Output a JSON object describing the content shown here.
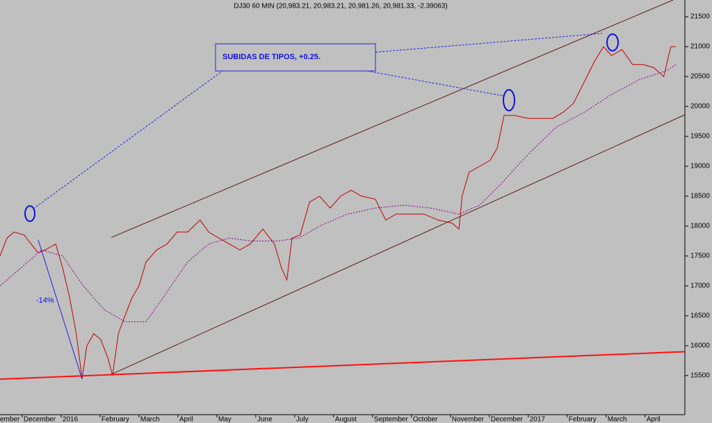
{
  "chart_data": {
    "type": "line",
    "title": "DJ30 60 MIN (20,983.21, 20,983.21, 20,981.26, 20,981.33, -2.39063)",
    "annotations": [
      "SUBIDAS DE TIPOS, +0.25.",
      "-14%"
    ],
    "xlim": [
      0.43,
      18.72
    ],
    "xticks": [
      {
        "value": 0,
        "label": "ember"
      },
      {
        "value": 1,
        "label": "December"
      },
      {
        "value": 2,
        "label": "2016"
      },
      {
        "value": 3,
        "label": "February"
      },
      {
        "value": 4,
        "label": "March"
      },
      {
        "value": 5,
        "label": "April"
      },
      {
        "value": 6,
        "label": "May"
      },
      {
        "value": 7,
        "label": "June"
      },
      {
        "value": 8,
        "label": "July"
      },
      {
        "value": 9,
        "label": "August"
      },
      {
        "value": 10,
        "label": "September"
      },
      {
        "value": 11,
        "label": "October"
      },
      {
        "value": 12,
        "label": "November"
      },
      {
        "value": 13,
        "label": "December"
      },
      {
        "value": 14,
        "label": "2017"
      },
      {
        "value": 15,
        "label": "February"
      },
      {
        "value": 16,
        "label": "March"
      },
      {
        "value": 17,
        "label": "April"
      }
    ],
    "ylim": [
      14870,
      21780
    ],
    "yticks": [
      15500,
      16000,
      16500,
      17000,
      17500,
      18000,
      18500,
      19000,
      19500,
      20000,
      20500,
      21000,
      21500
    ],
    "series": [
      {
        "color": "#c00000",
        "style": "solid",
        "x": [
          0.43,
          0.61,
          0.79,
          1.05,
          1.23,
          1.41,
          1.59,
          1.86,
          2.04,
          2.22,
          2.39,
          2.54,
          2.66,
          2.84,
          3.02,
          3.2,
          3.32,
          3.47,
          3.64,
          3.82,
          4.0,
          4.18,
          4.45,
          4.72,
          4.98,
          5.25,
          5.57,
          5.79,
          6.05,
          6.32,
          6.59,
          6.86,
          7.18,
          7.48,
          7.66,
          7.8,
          7.93,
          8.14,
          8.38,
          8.64,
          8.91,
          9.18,
          9.45,
          9.72,
          10.07,
          10.34,
          10.61,
          10.96,
          11.32,
          11.68,
          12.04,
          12.22,
          12.3,
          12.48,
          12.75,
          13.02,
          13.2,
          13.38,
          13.64,
          14.0,
          14.36,
          14.63,
          14.89,
          15.16,
          15.43,
          15.7,
          15.93,
          16.14,
          16.41,
          16.68,
          16.95,
          17.22,
          17.48,
          17.66,
          17.79
        ],
        "values": [
          17500,
          17800,
          17900,
          17850,
          17700,
          17550,
          17600,
          17700,
          17300,
          16800,
          16200,
          15450,
          16000,
          16200,
          16100,
          15800,
          15500,
          16200,
          16500,
          16800,
          17000,
          17400,
          17600,
          17700,
          17900,
          17900,
          18100,
          17900,
          17800,
          17700,
          17600,
          17700,
          17950,
          17700,
          17300,
          17100,
          17800,
          17850,
          18400,
          18500,
          18300,
          18500,
          18600,
          18500,
          18450,
          18100,
          18200,
          18200,
          18200,
          18100,
          18050,
          17950,
          18500,
          18900,
          19000,
          19100,
          19300,
          19850,
          19850,
          19800,
          19800,
          19800,
          19900,
          20050,
          20400,
          20750,
          21000,
          20850,
          20950,
          20700,
          20700,
          20650,
          20500,
          21000,
          21000
        ]
      },
      {
        "color": "#800080",
        "style": "dotted",
        "x": [
          0.43,
          0.97,
          1.5,
          2.04,
          2.57,
          3.11,
          3.64,
          4.18,
          4.72,
          5.25,
          5.79,
          6.32,
          6.86,
          7.57,
          8.11,
          8.64,
          9.36,
          10.07,
          10.79,
          11.5,
          12.22,
          12.75,
          13.29,
          14.0,
          14.71,
          15.43,
          16.14,
          16.86,
          17.57,
          17.79
        ],
        "values": [
          17000,
          17300,
          17600,
          17500,
          17000,
          16600,
          16400,
          16400,
          16900,
          17400,
          17700,
          17800,
          17750,
          17750,
          17800,
          18000,
          18200,
          18300,
          18350,
          18300,
          18200,
          18350,
          18700,
          19200,
          19650,
          19900,
          20200,
          20450,
          20600,
          20700
        ]
      },
      {
        "color": "#5a1a1a",
        "style": "solid",
        "x": [
          3.29,
          17.72
        ],
        "values": [
          17810,
          21780
        ]
      },
      {
        "color": "#5a1a1a",
        "style": "solid",
        "x": [
          3.29,
          18.02
        ],
        "values": [
          15520,
          19860
        ]
      },
      {
        "color": "#ff1010",
        "style": "thick",
        "x": [
          0.43,
          18.02
        ],
        "values": [
          15440,
          15900
        ]
      },
      {
        "color": "#2020e0",
        "style": "solid",
        "x": [
          1.41,
          2.54
        ],
        "values": [
          17770,
          15440
        ]
      }
    ]
  }
}
